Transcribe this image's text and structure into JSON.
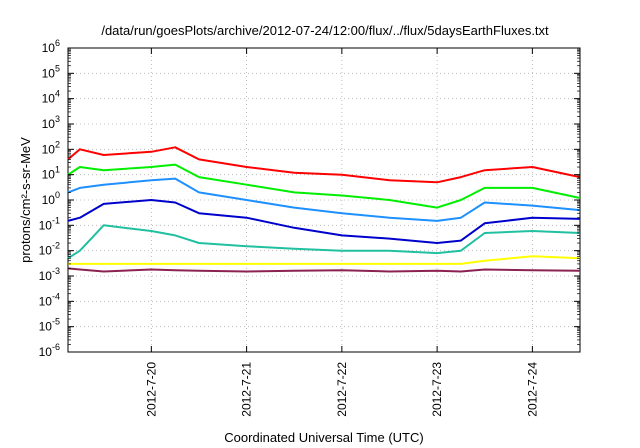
{
  "chart_data": {
    "type": "line",
    "title": "/data/run/goesPlots/archive/2012-07-24/12:00/flux/../flux/5daysEarthFluxes.txt",
    "xlabel": "Coordinated Universal Time (UTC)",
    "ylabel": "protons/cm²-s-sr-MeV",
    "yscale": "log",
    "ylim": [
      1e-06,
      1000000.0
    ],
    "xlim": [
      "2012-07-19 03:00",
      "2012-07-24 12:00"
    ],
    "y_ticks": [
      "10-6",
      "10-5",
      "10-4",
      "10-3",
      "10-2",
      "10-1",
      "100",
      "101",
      "102",
      "103",
      "104",
      "105",
      "106"
    ],
    "x_ticks": [
      "2012-7-20",
      "2012-7-21",
      "2012-7-22",
      "2012-7-23",
      "2012-7-24"
    ],
    "grid": true,
    "legend": "none",
    "x": [
      "2012-07-19 03:00",
      "2012-07-19 06:00",
      "2012-07-19 12:00",
      "2012-07-20 00:00",
      "2012-07-20 06:00",
      "2012-07-20 12:00",
      "2012-07-21 00:00",
      "2012-07-21 12:00",
      "2012-07-22 00:00",
      "2012-07-22 12:00",
      "2012-07-23 00:00",
      "2012-07-23 06:00",
      "2012-07-23 12:00",
      "2012-07-24 00:00",
      "2012-07-24 12:00"
    ],
    "series": [
      {
        "color": "#ff0000",
        "values": [
          40,
          100,
          60,
          80,
          120,
          40,
          20,
          12,
          10,
          6,
          5,
          8,
          15,
          20,
          8
        ]
      },
      {
        "color": "#00ee00",
        "values": [
          10,
          20,
          15,
          20,
          25,
          8,
          4,
          2,
          1.5,
          1,
          0.5,
          1,
          3,
          3,
          1.2
        ]
      },
      {
        "color": "#1e90ff",
        "values": [
          2,
          3,
          4,
          6,
          7,
          2,
          1,
          0.5,
          0.3,
          0.2,
          0.15,
          0.2,
          0.8,
          0.6,
          0.4
        ]
      },
      {
        "color": "#0000cd",
        "values": [
          0.15,
          0.2,
          0.7,
          1,
          0.8,
          0.3,
          0.2,
          0.08,
          0.04,
          0.03,
          0.02,
          0.025,
          0.12,
          0.2,
          0.18
        ]
      },
      {
        "color": "#20c0a0",
        "values": [
          0.005,
          0.01,
          0.1,
          0.06,
          0.04,
          0.02,
          0.015,
          0.012,
          0.01,
          0.01,
          0.008,
          0.01,
          0.05,
          0.06,
          0.05
        ]
      },
      {
        "color": "#ffff00",
        "values": [
          0.003,
          0.003,
          0.003,
          0.003,
          0.003,
          0.003,
          0.003,
          0.003,
          0.003,
          0.003,
          0.003,
          0.003,
          0.004,
          0.006,
          0.005
        ]
      },
      {
        "color": "#8b2252",
        "values": [
          0.002,
          0.0018,
          0.0015,
          0.0018,
          0.0017,
          0.0016,
          0.0015,
          0.0016,
          0.0017,
          0.0015,
          0.0016,
          0.0015,
          0.0018,
          0.0017,
          0.0016
        ]
      }
    ]
  }
}
